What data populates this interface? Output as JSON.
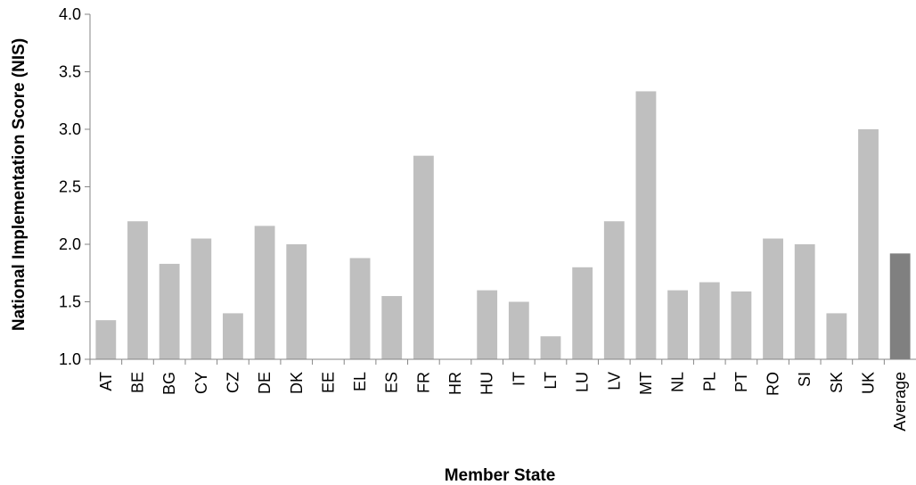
{
  "chart_data": {
    "type": "bar",
    "title": "",
    "xlabel": "Member State",
    "ylabel": "National Implementation Score (NIS)",
    "ylim": [
      1.0,
      4.0
    ],
    "yticks": [
      1.0,
      1.5,
      2.0,
      2.5,
      3.0,
      3.5,
      4.0
    ],
    "grid": false,
    "legend": "none",
    "categories": [
      "AT",
      "BE",
      "BG",
      "CY",
      "CZ",
      "DE",
      "DK",
      "EE",
      "EL",
      "ES",
      "FR",
      "HR",
      "HU",
      "IT",
      "LT",
      "LU",
      "LV",
      "MT",
      "NL",
      "PL",
      "PT",
      "RO",
      "SI",
      "SK",
      "UK",
      "Average"
    ],
    "values": [
      1.34,
      2.2,
      1.83,
      2.05,
      1.4,
      2.16,
      2.0,
      null,
      1.88,
      1.55,
      2.77,
      null,
      1.6,
      1.5,
      1.2,
      1.8,
      2.2,
      3.33,
      1.6,
      1.67,
      1.59,
      2.05,
      2.0,
      1.4,
      3.0,
      1.92
    ],
    "colors": {
      "bar": "#bfbfbf",
      "average_bar": "#808080",
      "axis": "#868686",
      "text": "#000000"
    }
  }
}
